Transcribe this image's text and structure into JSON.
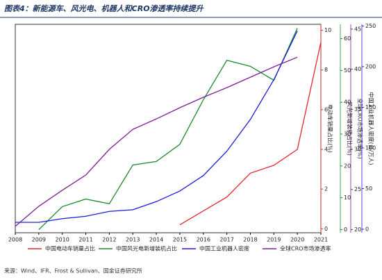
{
  "chart_data": {
    "type": "line",
    "title": "图表4：新能源车、风光电、机器人和CRO渗透率持续提升",
    "source": "来源：Wind、IFR、Frost & Sullivan、国金证券研究所",
    "x": [
      2008,
      2009,
      2010,
      2011,
      2012,
      2013,
      2014,
      2015,
      2016,
      2017,
      2018,
      2019,
      2020,
      2021
    ],
    "xlim": [
      2008,
      2021
    ],
    "axes": [
      {
        "label": "电动车销量占比(%)",
        "color": "#e8262b",
        "lim": [
          -0.2,
          10.3
        ],
        "ticks": [
          0,
          2,
          4,
          6,
          8,
          10
        ]
      },
      {
        "label": "风光新增装机占比(%)",
        "color": "#1a8a2a",
        "lim": [
          -1,
          64.5
        ],
        "ticks": [
          0,
          10,
          20,
          30,
          40,
          50,
          60
        ]
      },
      {
        "label": "全球CRO市场渗透率(%)",
        "color": "#7b1f8f",
        "lim": [
          19.6,
          45.6
        ],
        "ticks": [
          20,
          25,
          30,
          35,
          40,
          45
        ]
      },
      {
        "label": "中国工业机器人密度(台/万人)",
        "color": "#1a1adc",
        "lim": [
          -4.3,
          252
        ],
        "ticks": [
          0,
          50,
          100,
          150,
          200,
          250
        ]
      }
    ],
    "series": [
      {
        "name": "中国电动车销量占比",
        "color": "#e8262b",
        "axis": 0,
        "values": [
          null,
          null,
          null,
          null,
          null,
          null,
          null,
          0.2,
          0.9,
          1.6,
          2.8,
          3.2,
          4.0,
          9.4
        ]
      },
      {
        "name": "中国风光电新增装机占比",
        "color": "#1a8a2a",
        "axis": 1,
        "values": [
          null,
          0,
          7.2,
          9.6,
          8.1,
          20.3,
          21.4,
          26.8,
          40.8,
          53.2,
          51.3,
          46.9,
          63.3,
          null
        ]
      },
      {
        "name": "中国工业机器人密度",
        "color": "#1a1adc",
        "axis": 3,
        "values": [
          8.5,
          8.5,
          13,
          16,
          22,
          24,
          34,
          47,
          66,
          96,
          135,
          184,
          244,
          null
        ]
      },
      {
        "name": "全球CRO市场渗透率",
        "color": "#7b1f8f",
        "axis": 2,
        "values": [
          20.4,
          22.9,
          24.9,
          26.8,
          30.0,
          32.5,
          33.8,
          35.2,
          36.5,
          37.7,
          39.0,
          40.3,
          41.5,
          null
        ]
      }
    ]
  }
}
